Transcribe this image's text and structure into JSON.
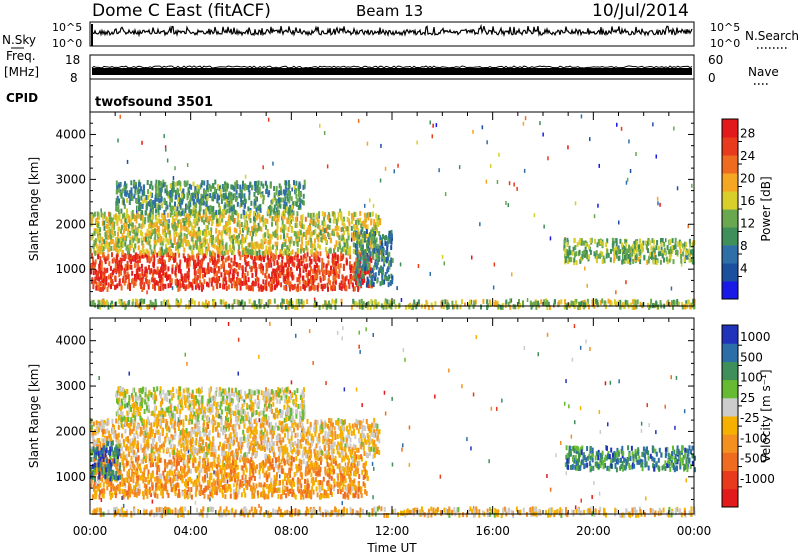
{
  "header": {
    "station": "Dome C East (fitACF)",
    "beam": "Beam 13",
    "date": "10/Jul/2014"
  },
  "summary": {
    "nsky_label": "N.Sky",
    "nsearch_label": "N.Search",
    "noise_ticks": [
      "10^5",
      "10^0"
    ],
    "freq_label_1": "Freq.",
    "freq_label_2": "[MHz]",
    "freq_ticks": [
      "18",
      "8"
    ],
    "nave_label": "Nave",
    "nave_ticks": [
      "60",
      "0"
    ],
    "cpid_label": "CPID",
    "cpid_value": "twofsound 3501"
  },
  "colors": {
    "power": [
      "#1a1ae6",
      "#1d4f9f",
      "#2f6fa8",
      "#3f8f5a",
      "#6aa84f",
      "#d9cf2a",
      "#f5a623",
      "#ef6b1f",
      "#e83a1c",
      "#e31a1c"
    ],
    "velocity": [
      "#2233bb",
      "#2b6ea8",
      "#3f8f5a",
      "#66bb33",
      "#cccccc",
      "#f5b000",
      "#f39020",
      "#ef6b1f",
      "#e83a1c",
      "#e31a1c"
    ]
  },
  "chart_data": [
    {
      "type": "heatmap",
      "quantity": "Power",
      "ylabel": "Slant Range [km]",
      "xlabel": "",
      "colorbar_label": "Power [dB]",
      "colorbar_ticks": [
        "4",
        "8",
        "12",
        "16",
        "20",
        "24",
        "28"
      ],
      "ylim": [
        180,
        4500
      ],
      "yticks": [
        1000,
        2000,
        3000,
        4000
      ],
      "xticks": [
        "00:00",
        "04:00",
        "08:00",
        "12:00",
        "16:00",
        "20:00",
        "00:00"
      ],
      "x_hours": [
        0,
        24
      ],
      "regions": [
        {
          "t0": 0.0,
          "t1": 11.2,
          "r0": 600,
          "r1": 1400,
          "level": 0.9
        },
        {
          "t0": 0.0,
          "t1": 11.5,
          "r0": 1400,
          "r1": 2300,
          "level": 0.55
        },
        {
          "t0": 1.0,
          "t1": 8.5,
          "r0": 2300,
          "r1": 3000,
          "level": 0.35
        },
        {
          "t0": 10.5,
          "t1": 12.0,
          "r0": 700,
          "r1": 1900,
          "level": 0.3
        },
        {
          "t0": 18.8,
          "t1": 24.0,
          "r0": 1200,
          "r1": 1700,
          "level": 0.45
        },
        {
          "t0": 0.0,
          "t1": 24.0,
          "r0": 200,
          "r1": 350,
          "level": 0.5
        }
      ]
    },
    {
      "type": "heatmap",
      "quantity": "Velocity",
      "ylabel": "Slant Range [km]",
      "xlabel": "Time UT",
      "colorbar_label": "Velocity [m s⁻¹]",
      "colorbar_ticks": [
        "1000",
        "500",
        "100",
        "25",
        "-25",
        "-100",
        "-500",
        "-1000"
      ],
      "ylim": [
        180,
        4500
      ],
      "yticks": [
        1000,
        2000,
        3000,
        4000
      ],
      "xticks": [
        "00:00",
        "04:00",
        "08:00",
        "12:00",
        "16:00",
        "20:00",
        "00:00"
      ],
      "x_hours": [
        0,
        24
      ],
      "regions": [
        {
          "t0": 0.0,
          "t1": 11.0,
          "r0": 600,
          "r1": 1500,
          "level": 0.65
        },
        {
          "t0": 0.0,
          "t1": 11.5,
          "r0": 1500,
          "r1": 2300,
          "level": 0.55
        },
        {
          "t0": 0.0,
          "t1": 1.2,
          "r0": 1000,
          "r1": 1800,
          "level": 0.15
        },
        {
          "t0": 1.0,
          "t1": 8.5,
          "r0": 2300,
          "r1": 3000,
          "level": 0.45
        },
        {
          "t0": 18.8,
          "t1": 24.0,
          "r0": 1200,
          "r1": 1700,
          "level": 0.2
        },
        {
          "t0": 0.0,
          "t1": 24.0,
          "r0": 200,
          "r1": 350,
          "level": 0.55
        }
      ]
    }
  ]
}
